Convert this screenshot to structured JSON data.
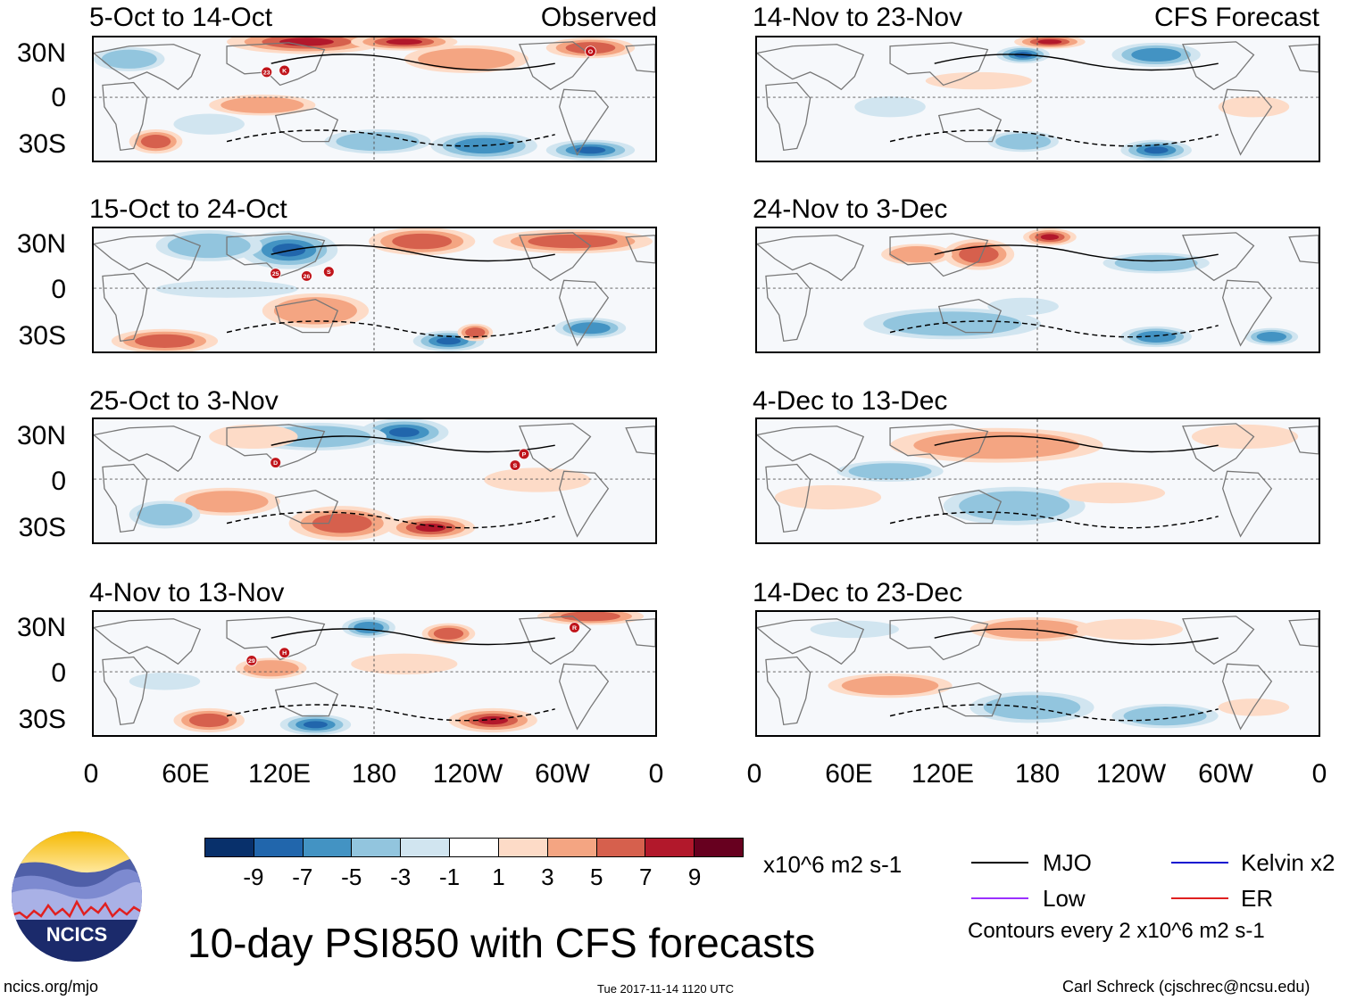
{
  "labels": {
    "observed": "Observed",
    "forecast": "CFS Forecast"
  },
  "panels_left": [
    {
      "title": "5-Oct to 14-Oct"
    },
    {
      "title": "15-Oct to 24-Oct"
    },
    {
      "title": "25-Oct to 3-Nov"
    },
    {
      "title": "4-Nov to 13-Nov"
    }
  ],
  "panels_right": [
    {
      "title": "14-Nov to 23-Nov"
    },
    {
      "title": "24-Nov to 3-Dec"
    },
    {
      "title": "4-Dec to 13-Dec"
    },
    {
      "title": "14-Dec to 23-Dec"
    }
  ],
  "yticks": [
    "30N",
    "0",
    "30S"
  ],
  "xticks": [
    "0",
    "60E",
    "120E",
    "180",
    "120W",
    "60W",
    "0"
  ],
  "colorbar": {
    "labels": [
      "-9",
      "-7",
      "-5",
      "-3",
      "-1",
      "1",
      "3",
      "5",
      "7",
      "9"
    ],
    "colors": [
      "#08306b",
      "#2166ac",
      "#4393c3",
      "#92c5de",
      "#d1e5f0",
      "#ffffff",
      "#fddbc7",
      "#f4a582",
      "#d6604d",
      "#b2182b",
      "#67001f"
    ],
    "units": "x10^6 m2 s-1"
  },
  "legend": {
    "mjo": "MJO",
    "kelvin": "Kelvin x2",
    "low": "Low",
    "er": "ER",
    "contours": "Contours every 2 x10^6 m2 s-1",
    "colors": {
      "mjo": "#000000",
      "kelvin": "#1010d0",
      "low": "#9b30ff",
      "er": "#e02020"
    }
  },
  "logo_text": "NCICS",
  "main_title": "10-day PSI850 with CFS forecasts",
  "footer": {
    "left": "ncics.org/mjo",
    "center": "Tue 2017-11-14 1120 UTC",
    "right": "Carl Schreck (cjschrec@ncsu.edu)"
  },
  "storms": [
    {
      "panel": 0,
      "labels": [
        "23",
        "K",
        "O"
      ]
    },
    {
      "panel": 1,
      "labels": [
        "25",
        "26",
        "S"
      ]
    },
    {
      "panel": 2,
      "labels": [
        "D",
        "P",
        "S"
      ]
    },
    {
      "panel": 3,
      "labels": [
        "29",
        "H",
        "R"
      ]
    }
  ]
}
